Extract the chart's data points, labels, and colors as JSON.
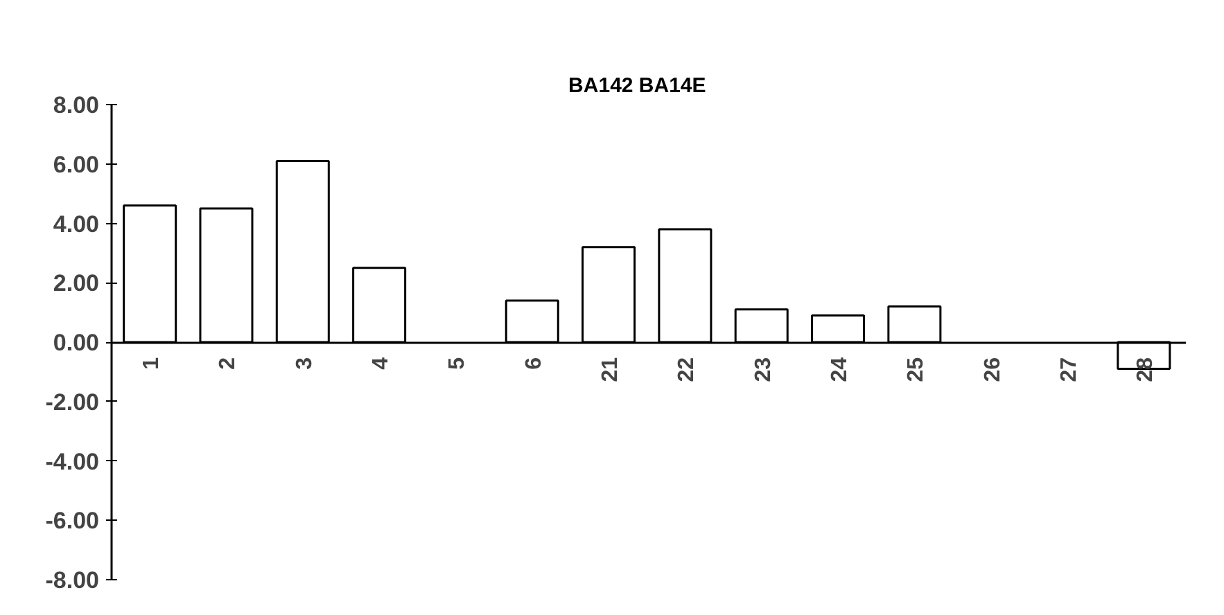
{
  "chart_data": {
    "type": "bar",
    "title": "BA142     BA14E",
    "categories": [
      "1",
      "2",
      "3",
      "4",
      "5",
      "6",
      "21",
      "22",
      "23",
      "24",
      "25",
      "26",
      "27",
      "28"
    ],
    "values": [
      4.6,
      4.5,
      6.1,
      2.5,
      0,
      1.4,
      3.2,
      3.8,
      1.1,
      0.9,
      1.2,
      0,
      0,
      -0.9
    ],
    "color": "#ffffff",
    "ylim": [
      -8,
      8
    ],
    "yticks": [
      {
        "value": -8,
        "label": "-8.00"
      },
      {
        "value": -6,
        "label": "-6.00"
      },
      {
        "value": -4,
        "label": "-4.00"
      },
      {
        "value": -2,
        "label": "-2.00"
      },
      {
        "value": 0,
        "label": "0.00"
      },
      {
        "value": 2,
        "label": "2.00"
      },
      {
        "value": 4,
        "label": "4.00"
      },
      {
        "value": 6,
        "label": "6.00"
      },
      {
        "value": 8,
        "label": "8.00"
      }
    ],
    "grid": false
  }
}
